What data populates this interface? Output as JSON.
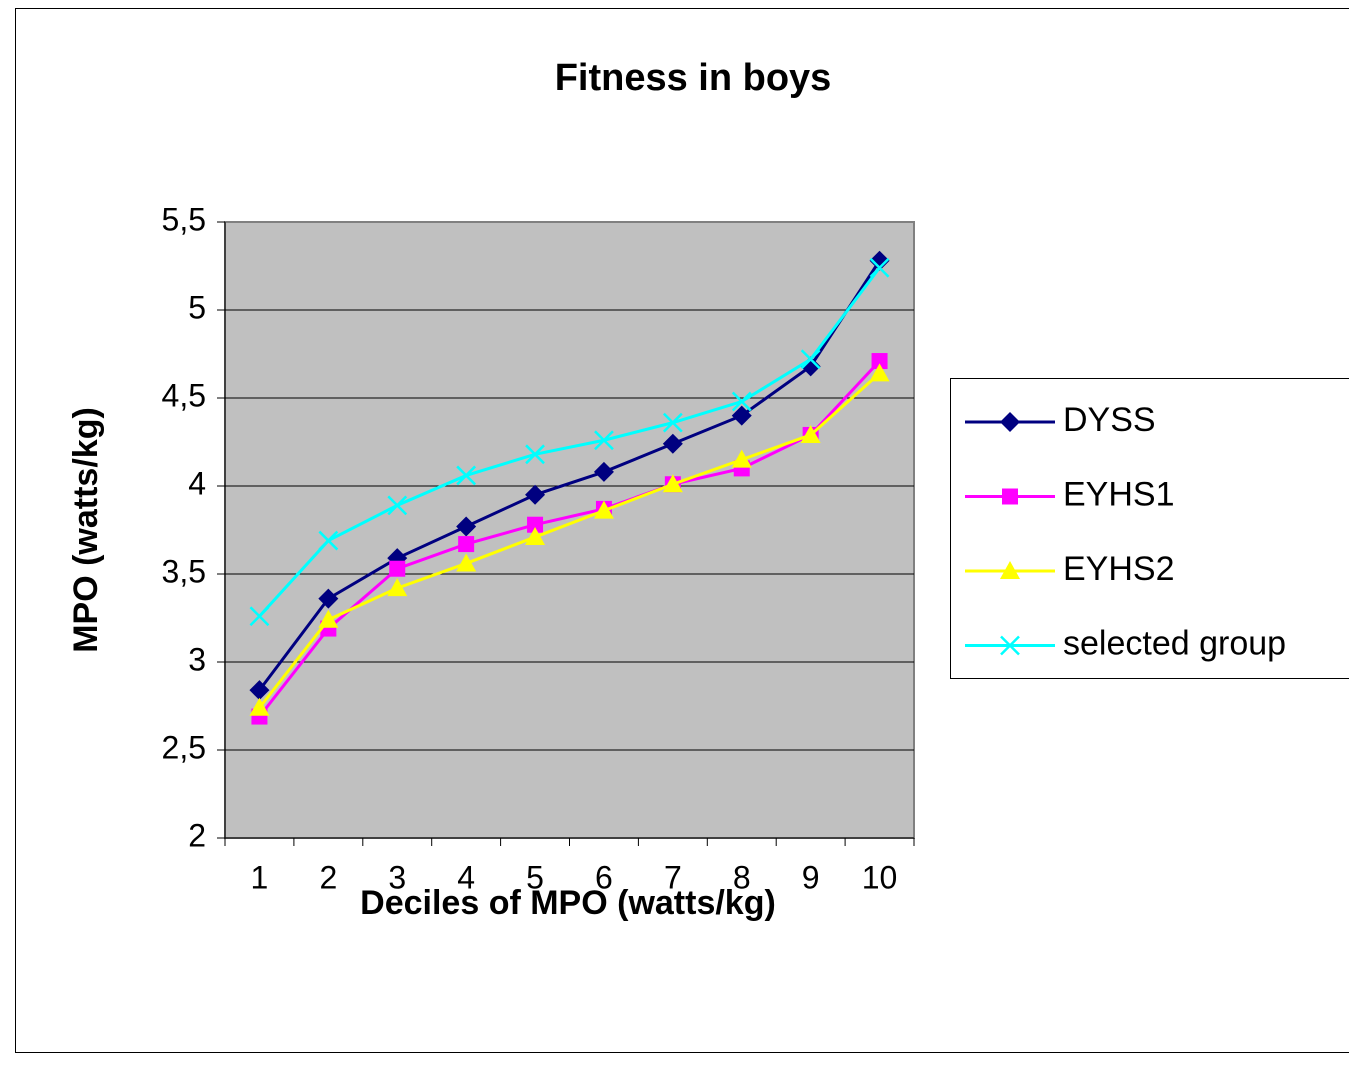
{
  "chart_data": {
    "type": "line",
    "title": "Fitness in boys",
    "x_label": "Deciles of MPO (watts/kg)",
    "y_label": "MPO (watts/kg)",
    "categories": [
      "1",
      "2",
      "3",
      "4",
      "5",
      "6",
      "7",
      "8",
      "9",
      "10"
    ],
    "ylim": [
      2,
      5.5
    ],
    "yticks": [
      2,
      {
        "value": 2.5,
        "label": "2,5"
      },
      3,
      {
        "value": 3.5,
        "label": "3,5"
      },
      4,
      {
        "value": 4.5,
        "label": "4,5"
      },
      5,
      {
        "value": 5.5,
        "label": "5,5"
      }
    ],
    "grid": true,
    "legend": "right",
    "series": [
      {
        "name": "DYSS",
        "color": "#000080",
        "marker": "diamond",
        "values": [
          2.84,
          3.36,
          3.59,
          3.77,
          3.95,
          4.08,
          4.24,
          4.4,
          4.68,
          5.28
        ]
      },
      {
        "name": "EYHS1",
        "color": "#ff00ff",
        "marker": "square",
        "values": [
          2.69,
          3.19,
          3.53,
          3.67,
          3.78,
          3.87,
          4.01,
          4.1,
          4.29,
          4.71
        ]
      },
      {
        "name": "EYHS2",
        "color": "#ffff00",
        "marker": "triangle",
        "values": [
          2.74,
          3.24,
          3.42,
          3.56,
          3.71,
          3.86,
          4.01,
          4.15,
          4.29,
          4.64
        ]
      },
      {
        "name": "selected group",
        "color": "#00ffff",
        "marker": "x",
        "values": [
          3.26,
          3.69,
          3.89,
          4.06,
          4.18,
          4.26,
          4.36,
          4.48,
          4.72,
          5.24
        ]
      }
    ]
  }
}
